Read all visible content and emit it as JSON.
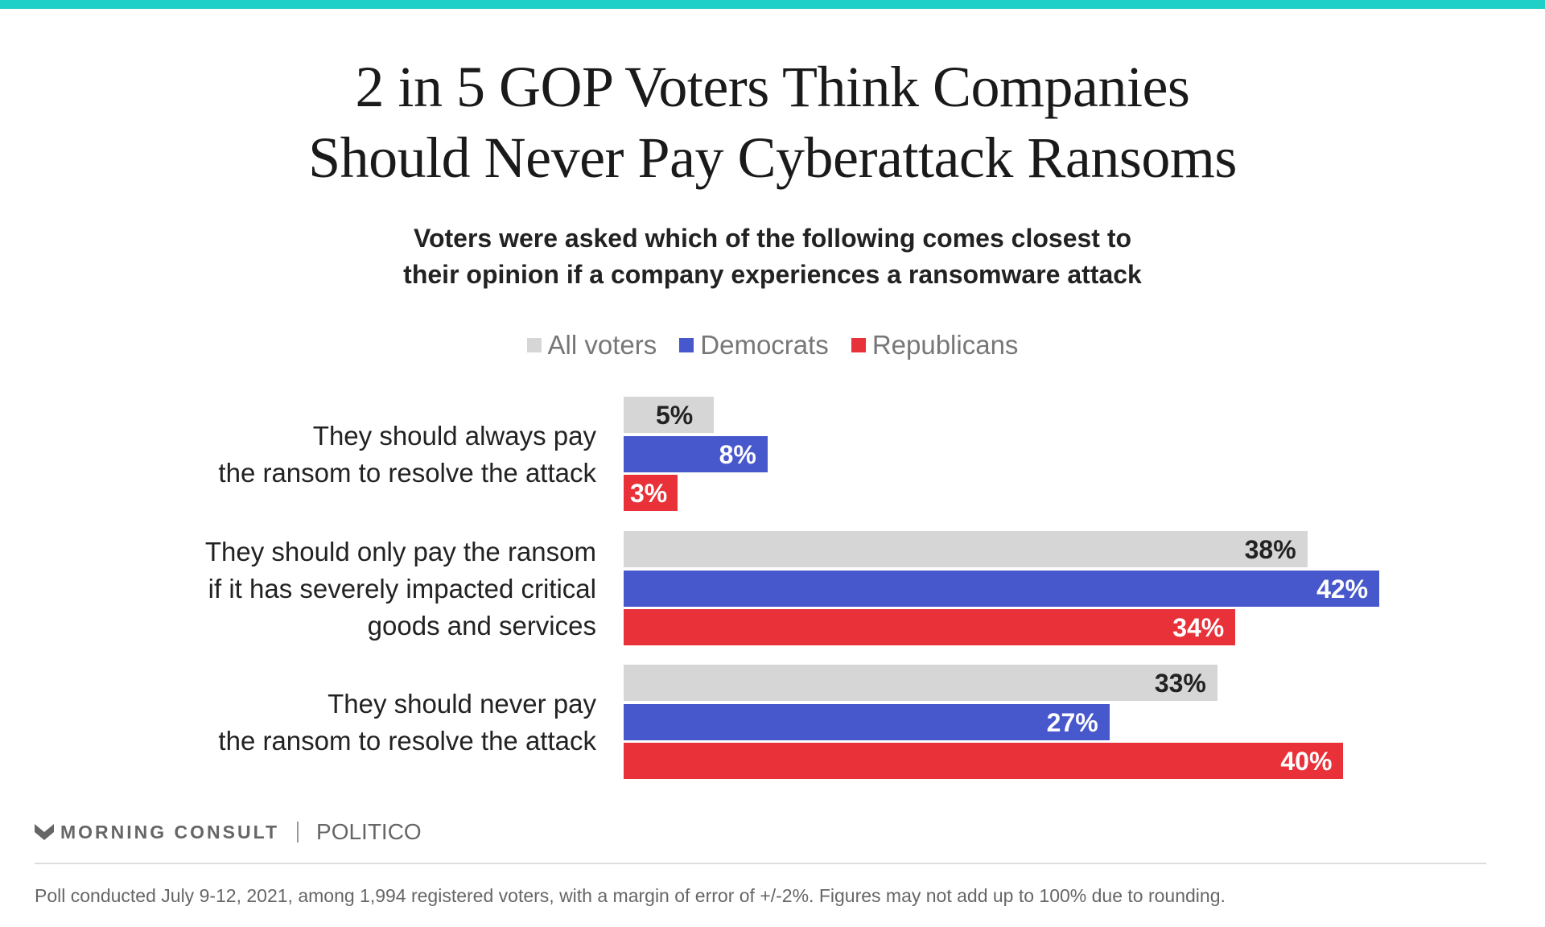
{
  "title_lines": [
    "2 in 5 GOP Voters Think Companies",
    "Should Never Pay Cyberattack Ransoms"
  ],
  "subtitle_lines": [
    "Voters were asked which of the following comes closest to",
    "their opinion if a company experiences a ransomware attack"
  ],
  "chart_data": {
    "type": "bar",
    "orientation": "horizontal",
    "title": "2 in 5 GOP Voters Think Companies Should Never Pay Cyberattack Ransoms",
    "categories": [
      [
        "They should always pay",
        "the ransom to resolve the attack"
      ],
      [
        "They should only pay the ransom",
        "if it has severely impacted critical",
        "goods and services"
      ],
      [
        "They should never pay",
        "the ransom to resolve the attack"
      ]
    ],
    "series": [
      {
        "name": "All voters",
        "color": "#d6d6d6",
        "text_color": "#222222",
        "values": [
          5,
          38,
          33
        ]
      },
      {
        "name": "Democrats",
        "color": "#4757cc",
        "text_color": "#ffffff",
        "values": [
          8,
          42,
          27
        ]
      },
      {
        "name": "Republicans",
        "color": "#e83138",
        "text_color": "#ffffff",
        "values": [
          3,
          34,
          40
        ]
      }
    ],
    "value_suffix": "%",
    "legend": "top-center",
    "grid": false,
    "xlim": [
      0,
      42
    ]
  },
  "branding": {
    "morning_consult": "MORNING CONSULT",
    "politico": "POLITICO"
  },
  "footnote": "Poll conducted July 9-12, 2021, among 1,994 registered voters, with a margin of error of +/-2%. Figures may not add up to 100% due to rounding."
}
